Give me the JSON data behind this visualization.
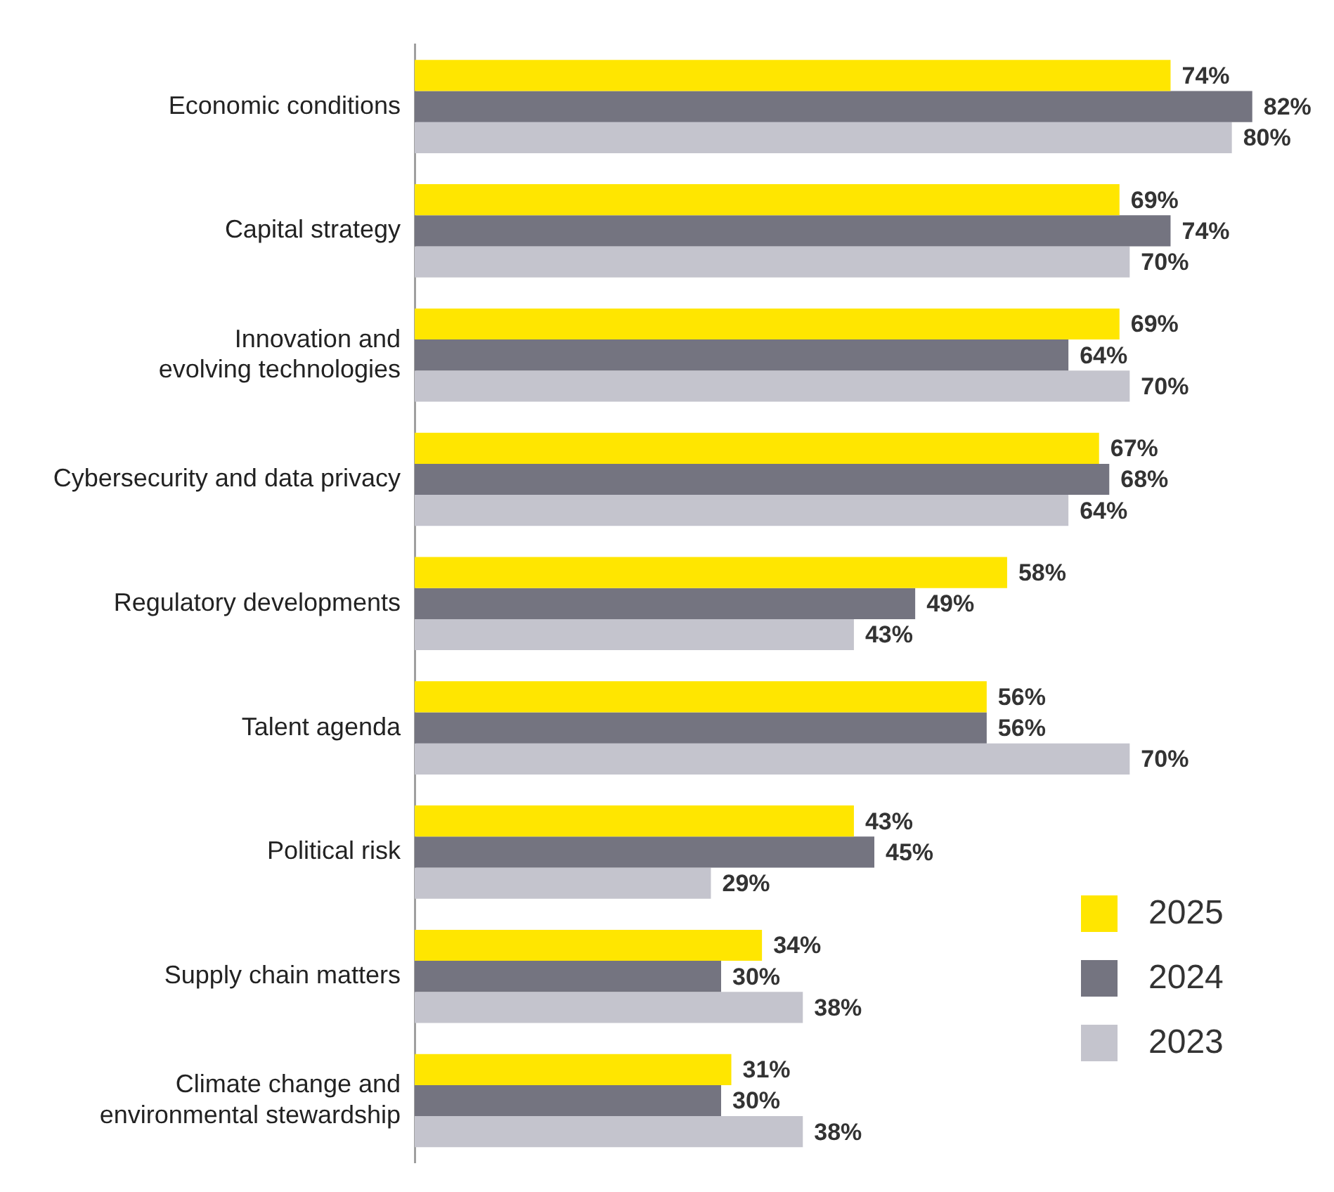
{
  "chart_data": {
    "type": "bar",
    "orientation": "horizontal",
    "categories": [
      "Economic conditions",
      "Capital strategy",
      "Innovation and evolving technologies",
      "Cybersecurity and data privacy",
      "Regulatory developments",
      "Talent agenda",
      "Political risk",
      "Supply chain matters",
      "Climate change and environmental stewardship"
    ],
    "series": [
      {
        "name": "2025",
        "color": "#ffe600",
        "values": [
          74,
          69,
          69,
          67,
          58,
          56,
          43,
          34,
          31
        ],
        "value_labels": [
          "74%",
          "69%",
          "69%",
          "67%",
          "58%",
          "56%",
          "43%",
          "34%",
          "31%"
        ]
      },
      {
        "name": "2024",
        "color": "#747480",
        "values": [
          82,
          74,
          64,
          68,
          49,
          56,
          45,
          30,
          30
        ],
        "value_labels": [
          "82%",
          "74%",
          "64%",
          "68%",
          "49%",
          "56%",
          "45%",
          "30%",
          "30%"
        ]
      },
      {
        "name": "2023",
        "color": "#c4c4cd",
        "values": [
          80,
          70,
          70,
          64,
          43,
          70,
          29,
          38,
          38
        ],
        "value_labels": [
          "80%",
          "70%",
          "70%",
          "64%",
          "43%",
          "70%",
          "29%",
          "38%",
          "38%"
        ]
      }
    ],
    "tick_labels": "y",
    "grid": false,
    "legend": "bottom right"
  }
}
